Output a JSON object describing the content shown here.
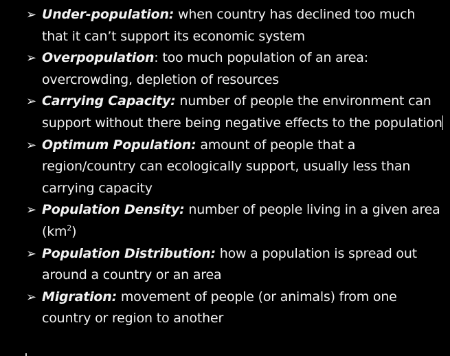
{
  "colors": {
    "background": "#000000",
    "text": "#f2f2f2"
  },
  "bullet_icon": "arrowhead-bullet-icon",
  "items": [
    {
      "term": "Under-population:",
      "definition": " when country has declined too much that it can’t support its economic system"
    },
    {
      "term": "Overpopulation",
      "definition": ": too much population of an area: overcrowding, depletion of resources"
    },
    {
      "term": "Carrying Capacity:",
      "definition": " number of people the environment can support without there being negative effects to the population"
    },
    {
      "term": "Optimum Population:",
      "definition": " amount of people that a region/country can ecologically support, usually less than carrying capacity"
    },
    {
      "term": "Population Density:",
      "definition": " number of people living in a given area (km",
      "superscript": "2",
      "definition_end": ")"
    },
    {
      "term": "Population Distribution:",
      "definition": " how a population is spread out around a country or an area"
    },
    {
      "term": "Migration:",
      "definition": " movement of people (or animals) from one country or region to another"
    }
  ]
}
